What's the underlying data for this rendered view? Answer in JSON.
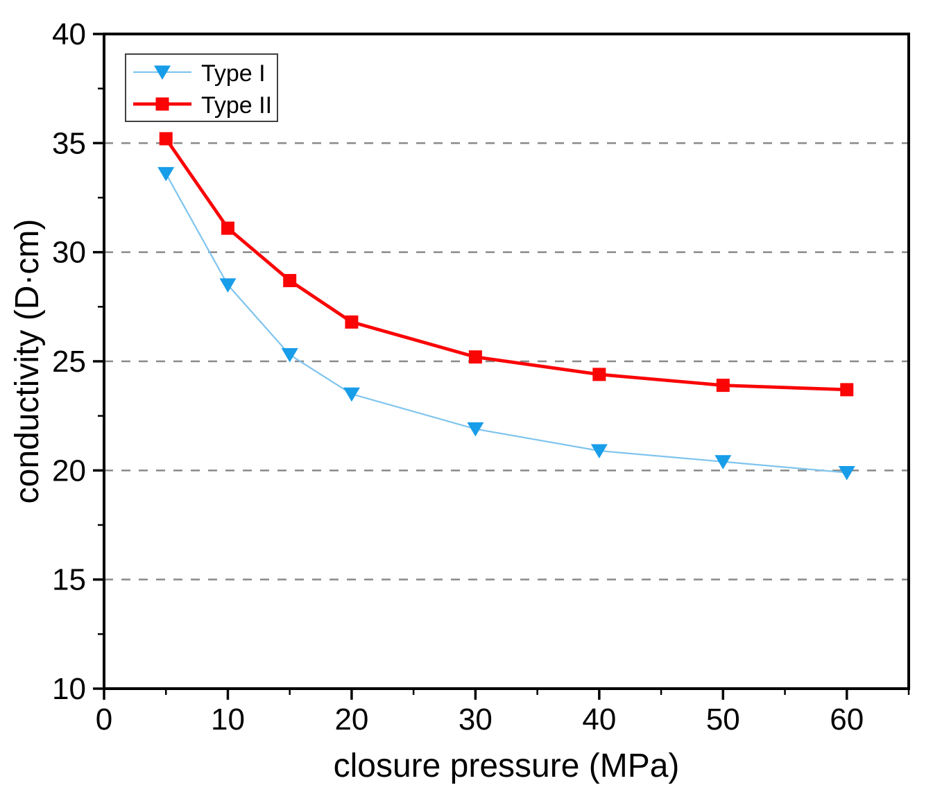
{
  "chart_data": {
    "type": "line",
    "title": "",
    "xlabel": "closure pressure (MPa)",
    "ylabel": "conductivity (D·cm)",
    "x": [
      5,
      10,
      15,
      20,
      30,
      40,
      50,
      60
    ],
    "series": [
      {
        "name": "Type I",
        "marker": "triangle-down",
        "marker_color": "#189de9",
        "line_color": "#7fc4ee",
        "line_width": 2.2,
        "values": [
          33.6,
          28.5,
          25.3,
          23.5,
          21.9,
          20.9,
          20.4,
          19.9
        ]
      },
      {
        "name": "Type II",
        "marker": "square",
        "marker_color": "#fa0505",
        "line_color": "#fa0505",
        "line_width": 4.8,
        "values": [
          35.2,
          31.1,
          28.7,
          26.8,
          25.2,
          24.4,
          23.9,
          23.7
        ]
      }
    ],
    "xlim": [
      0,
      65
    ],
    "ylim": [
      10,
      40
    ],
    "x_major_ticks": [
      0,
      10,
      20,
      30,
      40,
      50,
      60
    ],
    "x_minor_step": 5,
    "y_major_ticks": [
      10,
      15,
      20,
      25,
      30,
      35,
      40
    ],
    "y_minor_step": 2.5,
    "gridlines_y": [
      15,
      20,
      25,
      30,
      35
    ],
    "grid_style": "dashed",
    "grid_color": "#898989",
    "axis_color": "#000000",
    "background_color": "#ffffff",
    "legend_position": "top-left",
    "legend_border_color": "#404040"
  }
}
